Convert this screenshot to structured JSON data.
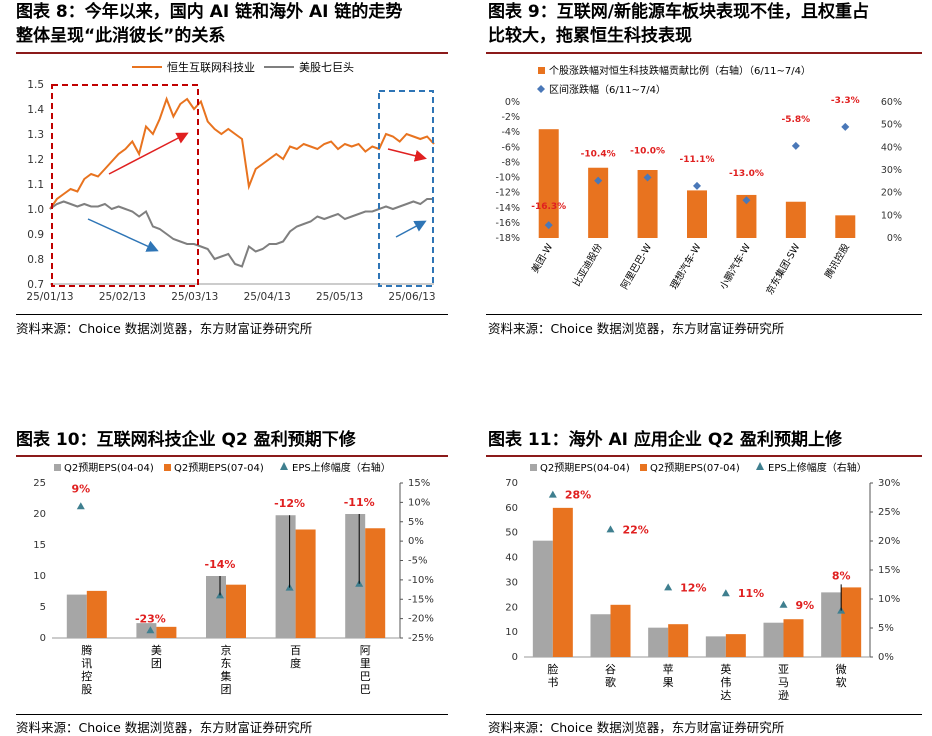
{
  "colors": {
    "orange": "#e8731f",
    "gray": "#a6a6a6",
    "line_gray": "#7f7f7f",
    "diamond": "#4a78b8",
    "triangle": "#3f7f8f",
    "red": "#e02020",
    "rule": "#8b1a1a",
    "dash_red": "#c00000",
    "dash_blue": "#2e75b6",
    "arrow_blue": "#2e75b6"
  },
  "panels": {
    "p8": {
      "title_line1": "图表 8：今年以来，国内 AI 链和海外 AI 链的走势",
      "title_line2": "整体呈现“此消彼长”的关系",
      "source": "资料来源：Choice 数据浏览器，东方财富证券研究所",
      "chart_data": {
        "type": "line",
        "legend": [
          "恒生互联网科技业",
          "美股七巨头"
        ],
        "yticks": [
          "1.5",
          "1.4",
          "1.3",
          "1.2",
          "1.1",
          "1.0",
          "0.9",
          "0.8",
          "0.7"
        ],
        "xticks": [
          "25/01/13",
          "25/02/13",
          "25/03/13",
          "25/04/13",
          "25/05/13",
          "25/06/13"
        ],
        "ylim": [
          0.7,
          1.5
        ],
        "series": [
          {
            "name": "恒生互联网科技业",
            "values": [
              1.0,
              1.04,
              1.06,
              1.08,
              1.07,
              1.12,
              1.14,
              1.13,
              1.16,
              1.19,
              1.22,
              1.24,
              1.27,
              1.22,
              1.33,
              1.3,
              1.36,
              1.44,
              1.37,
              1.42,
              1.44,
              1.4,
              1.43,
              1.35,
              1.32,
              1.3,
              1.32,
              1.3,
              1.28,
              1.09,
              1.16,
              1.18,
              1.2,
              1.22,
              1.2,
              1.25,
              1.24,
              1.26,
              1.25,
              1.24,
              1.26,
              1.27,
              1.24,
              1.26,
              1.25,
              1.26,
              1.23,
              1.25,
              1.24,
              1.3,
              1.29,
              1.27,
              1.3,
              1.29,
              1.28,
              1.29,
              1.26
            ]
          },
          {
            "name": "美股七巨头",
            "values": [
              1.0,
              1.02,
              1.03,
              1.02,
              1.01,
              1.02,
              1.01,
              1.01,
              1.02,
              1.0,
              1.01,
              1.0,
              0.99,
              0.97,
              0.99,
              0.93,
              0.92,
              0.9,
              0.88,
              0.87,
              0.86,
              0.86,
              0.85,
              0.84,
              0.8,
              0.81,
              0.82,
              0.78,
              0.77,
              0.85,
              0.83,
              0.84,
              0.86,
              0.86,
              0.87,
              0.91,
              0.93,
              0.94,
              0.95,
              0.97,
              0.96,
              0.97,
              0.98,
              0.96,
              0.97,
              0.98,
              0.99,
              0.99,
              1.0,
              1.01,
              1.0,
              1.01,
              1.02,
              1.03,
              1.02,
              1.04,
              1.04
            ]
          }
        ],
        "grid": false
      }
    },
    "p9": {
      "title_line1": "图表 9：互联网/新能源车板块表现不佳，且权重占",
      "title_line2": "比较大，拖累恒生科技表现",
      "source": "资料来源：Choice 数据浏览器，东方财富证券研究所",
      "chart_data": {
        "type": "bar",
        "legend": [
          "个股涨跌幅对恒生科技跌幅贡献比例（右轴）（6/11~7/4）",
          "区间涨跌幅（6/11~7/4）"
        ],
        "categories": [
          "美团-W",
          "比亚迪股份",
          "阿里巴巴-W",
          "理想汽车-W",
          "小鹏汽车-W",
          "京东集团-SW",
          "腾讯控股"
        ],
        "bar_values": [
          48,
          31,
          30,
          21,
          19,
          16,
          10
        ],
        "point_values": [
          -16.3,
          -10.4,
          -10.0,
          -11.1,
          -13.0,
          -5.8,
          -3.3
        ],
        "point_labels": [
          "-16.3%",
          "-10.4%",
          "-10.0%",
          "-11.1%",
          "-13.0%",
          "-5.8%",
          "-3.3%"
        ],
        "y_left_ticks": [
          "0%",
          "-2%",
          "-4%",
          "-6%",
          "-8%",
          "-10%",
          "-12%",
          "-14%",
          "-16%",
          "-18%"
        ],
        "y_right_ticks": [
          "60%",
          "50%",
          "40%",
          "30%",
          "20%",
          "10%",
          "0%"
        ],
        "ylim_left": [
          -18,
          0
        ],
        "ylim_right": [
          0,
          60
        ]
      }
    },
    "p10": {
      "title_line1": "图表 10：互联网科技企业 Q2 盈利预期下修",
      "source": "资料来源：Choice 数据浏览器，东方财富证券研究所",
      "chart_data": {
        "type": "bar",
        "legend": [
          "Q2预期EPS(04-04)",
          "Q2预期EPS(07-04)",
          "EPS上修幅度（右轴）"
        ],
        "categories": [
          "腾讯控股",
          "美团",
          "京东集团",
          "百度",
          "阿里巴巴"
        ],
        "series": [
          {
            "name": "Q2预期EPS(04-04)",
            "values": [
              7.0,
              2.4,
              10.0,
              19.8,
              20.0
            ]
          },
          {
            "name": "Q2预期EPS(07-04)",
            "values": [
              7.6,
              1.8,
              8.6,
              17.5,
              17.7
            ]
          }
        ],
        "point_values": [
          9,
          -23,
          -14,
          -12,
          -11
        ],
        "point_labels": [
          "9%",
          "-23%",
          "-14%",
          "-12%",
          "-11%"
        ],
        "y_left_ticks": [
          "25",
          "20",
          "15",
          "10",
          "5",
          "0"
        ],
        "y_right_ticks": [
          "15%",
          "10%",
          "5%",
          "0%",
          "-5%",
          "-10%",
          "-15%",
          "-20%",
          "-25%"
        ],
        "ylim_left": [
          0,
          25
        ],
        "ylim_right": [
          -25,
          15
        ]
      }
    },
    "p11": {
      "title_line1": "图表 11：海外 AI 应用企业 Q2 盈利预期上修",
      "source": "资料来源：Choice 数据浏览器，东方财富证券研究所",
      "chart_data": {
        "type": "bar",
        "legend": [
          "Q2预期EPS(04-04)",
          "Q2预期EPS(07-04)",
          "EPS上修幅度（右轴）"
        ],
        "categories": [
          "脸书",
          "谷歌",
          "苹果",
          "英伟达",
          "亚马逊",
          "微软"
        ],
        "series": [
          {
            "name": "Q2预期EPS(04-04)",
            "values": [
              46.8,
              17.2,
              11.8,
              8.3,
              13.8,
              26.0
            ]
          },
          {
            "name": "Q2预期EPS(07-04)",
            "values": [
              60.0,
              21.0,
              13.2,
              9.2,
              15.2,
              28.0
            ]
          }
        ],
        "point_values": [
          28,
          22,
          12,
          11,
          9,
          8
        ],
        "point_labels": [
          "28%",
          "22%",
          "12%",
          "11%",
          "9%",
          "8%"
        ],
        "y_left_ticks": [
          "70",
          "60",
          "50",
          "40",
          "30",
          "20",
          "10",
          "0"
        ],
        "y_right_ticks": [
          "30%",
          "25%",
          "20%",
          "15%",
          "10%",
          "5%",
          "0%"
        ],
        "ylim_left": [
          0,
          70
        ],
        "ylim_right": [
          0,
          30
        ]
      }
    }
  }
}
